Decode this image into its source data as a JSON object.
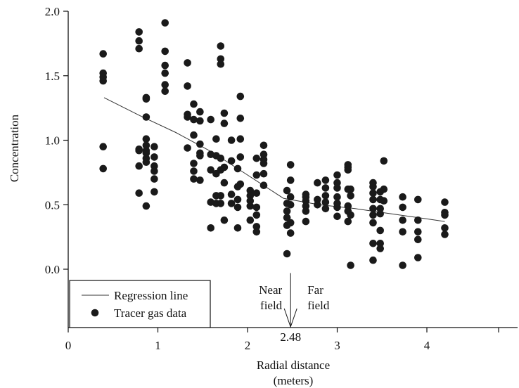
{
  "chart_data": {
    "type": "scatter",
    "xlabel": "Radial distance",
    "xlabel_unit": "(meters)",
    "ylabel": "Concentration",
    "xlim": [
      0,
      4.8
    ],
    "ylim": [
      -0.45,
      2.0
    ],
    "x_ticks": [
      0,
      1,
      2,
      3,
      4
    ],
    "x_tick_labels": [
      "0",
      "1",
      "2",
      "3",
      "4"
    ],
    "y_ticks": [
      0.0,
      0.5,
      1.0,
      1.5,
      2.0
    ],
    "y_tick_labels": [
      "0.0",
      "0.5",
      "1.0",
      "1.5",
      "2.0"
    ],
    "grid": false,
    "legend_position": "bottom-left",
    "series": [
      {
        "name": "Tracer gas data",
        "kind": "points",
        "color": "#1a1a1a",
        "points": [
          [
            0.39,
            1.67
          ],
          [
            0.39,
            1.52
          ],
          [
            0.39,
            1.49
          ],
          [
            0.39,
            1.46
          ],
          [
            0.39,
            0.95
          ],
          [
            0.39,
            0.78
          ],
          [
            0.79,
            1.84
          ],
          [
            0.79,
            1.77
          ],
          [
            0.79,
            1.71
          ],
          [
            0.79,
            0.93
          ],
          [
            0.79,
            0.92
          ],
          [
            0.79,
            0.8
          ],
          [
            0.79,
            0.59
          ],
          [
            0.87,
            1.33
          ],
          [
            0.87,
            1.32
          ],
          [
            0.87,
            1.18
          ],
          [
            0.87,
            1.01
          ],
          [
            0.87,
            0.96
          ],
          [
            0.87,
            0.92
          ],
          [
            0.87,
            0.9
          ],
          [
            0.87,
            0.86
          ],
          [
            0.87,
            0.83
          ],
          [
            0.87,
            0.49
          ],
          [
            0.96,
            0.95
          ],
          [
            0.96,
            0.87
          ],
          [
            0.96,
            0.8
          ],
          [
            0.96,
            0.76
          ],
          [
            0.96,
            0.7
          ],
          [
            0.96,
            0.6
          ],
          [
            1.08,
            1.91
          ],
          [
            1.08,
            1.69
          ],
          [
            1.08,
            1.58
          ],
          [
            1.08,
            1.52
          ],
          [
            1.08,
            1.43
          ],
          [
            1.08,
            1.38
          ],
          [
            1.33,
            1.6
          ],
          [
            1.33,
            1.42
          ],
          [
            1.33,
            1.2
          ],
          [
            1.33,
            1.18
          ],
          [
            1.33,
            0.94
          ],
          [
            1.4,
            1.28
          ],
          [
            1.4,
            1.16
          ],
          [
            1.4,
            1.04
          ],
          [
            1.4,
            0.82
          ],
          [
            1.4,
            0.76
          ],
          [
            1.4,
            0.7
          ],
          [
            1.47,
            1.22
          ],
          [
            1.47,
            1.15
          ],
          [
            1.47,
            0.97
          ],
          [
            1.47,
            0.9
          ],
          [
            1.47,
            0.88
          ],
          [
            1.47,
            0.69
          ],
          [
            1.59,
            1.16
          ],
          [
            1.59,
            0.89
          ],
          [
            1.59,
            0.77
          ],
          [
            1.59,
            0.52
          ],
          [
            1.59,
            0.32
          ],
          [
            1.65,
            1.01
          ],
          [
            1.65,
            0.88
          ],
          [
            1.65,
            0.74
          ],
          [
            1.65,
            0.57
          ],
          [
            1.65,
            0.51
          ],
          [
            1.7,
            1.73
          ],
          [
            1.7,
            1.63
          ],
          [
            1.7,
            1.59
          ],
          [
            1.7,
            0.86
          ],
          [
            1.7,
            0.77
          ],
          [
            1.7,
            0.57
          ],
          [
            1.7,
            0.51
          ],
          [
            1.74,
            1.21
          ],
          [
            1.74,
            1.13
          ],
          [
            1.74,
            0.79
          ],
          [
            1.74,
            0.67
          ],
          [
            1.74,
            0.38
          ],
          [
            1.82,
            1.0
          ],
          [
            1.82,
            0.84
          ],
          [
            1.82,
            0.58
          ],
          [
            1.82,
            0.51
          ],
          [
            1.89,
            0.78
          ],
          [
            1.89,
            0.64
          ],
          [
            1.89,
            0.54
          ],
          [
            1.89,
            0.48
          ],
          [
            1.89,
            0.32
          ],
          [
            1.92,
            1.34
          ],
          [
            1.92,
            1.17
          ],
          [
            1.92,
            1.01
          ],
          [
            1.92,
            0.87
          ],
          [
            1.92,
            0.66
          ],
          [
            2.03,
            0.61
          ],
          [
            2.03,
            0.57
          ],
          [
            2.03,
            0.53
          ],
          [
            2.03,
            0.49
          ],
          [
            2.03,
            0.38
          ],
          [
            2.1,
            0.86
          ],
          [
            2.1,
            0.73
          ],
          [
            2.1,
            0.59
          ],
          [
            2.1,
            0.48
          ],
          [
            2.1,
            0.42
          ],
          [
            2.1,
            0.33
          ],
          [
            2.1,
            0.29
          ],
          [
            2.18,
            0.96
          ],
          [
            2.18,
            0.89
          ],
          [
            2.18,
            0.85
          ],
          [
            2.18,
            0.82
          ],
          [
            2.18,
            0.74
          ],
          [
            2.18,
            0.65
          ],
          [
            2.44,
            0.61
          ],
          [
            2.44,
            0.51
          ],
          [
            2.44,
            0.45
          ],
          [
            2.44,
            0.4
          ],
          [
            2.44,
            0.34
          ],
          [
            2.44,
            0.12
          ],
          [
            2.48,
            0.81
          ],
          [
            2.48,
            0.69
          ],
          [
            2.48,
            0.56
          ],
          [
            2.48,
            0.5
          ],
          [
            2.48,
            0.36
          ],
          [
            2.48,
            0.28
          ],
          [
            2.65,
            0.58
          ],
          [
            2.65,
            0.56
          ],
          [
            2.65,
            0.53
          ],
          [
            2.65,
            0.49
          ],
          [
            2.65,
            0.45
          ],
          [
            2.65,
            0.37
          ],
          [
            2.78,
            0.67
          ],
          [
            2.78,
            0.54
          ],
          [
            2.78,
            0.5
          ],
          [
            2.87,
            0.69
          ],
          [
            2.87,
            0.63
          ],
          [
            2.87,
            0.57
          ],
          [
            2.87,
            0.52
          ],
          [
            2.87,
            0.47
          ],
          [
            3.0,
            0.73
          ],
          [
            3.0,
            0.67
          ],
          [
            3.0,
            0.63
          ],
          [
            3.0,
            0.56
          ],
          [
            3.0,
            0.51
          ],
          [
            3.0,
            0.48
          ],
          [
            3.0,
            0.41
          ],
          [
            3.12,
            0.81
          ],
          [
            3.12,
            0.79
          ],
          [
            3.12,
            0.77
          ],
          [
            3.12,
            0.62
          ],
          [
            3.12,
            0.49
          ],
          [
            3.12,
            0.45
          ],
          [
            3.12,
            0.37
          ],
          [
            3.15,
            0.62
          ],
          [
            3.15,
            0.57
          ],
          [
            3.15,
            0.42
          ],
          [
            3.15,
            0.03
          ],
          [
            3.4,
            0.67
          ],
          [
            3.4,
            0.64
          ],
          [
            3.4,
            0.59
          ],
          [
            3.4,
            0.54
          ],
          [
            3.4,
            0.47
          ],
          [
            3.4,
            0.42
          ],
          [
            3.4,
            0.36
          ],
          [
            3.4,
            0.2
          ],
          [
            3.4,
            0.07
          ],
          [
            3.48,
            0.6
          ],
          [
            3.48,
            0.54
          ],
          [
            3.48,
            0.47
          ],
          [
            3.48,
            0.43
          ],
          [
            3.48,
            0.3
          ],
          [
            3.48,
            0.2
          ],
          [
            3.48,
            0.16
          ],
          [
            3.52,
            0.84
          ],
          [
            3.52,
            0.62
          ],
          [
            3.52,
            0.53
          ],
          [
            3.73,
            0.56
          ],
          [
            3.73,
            0.48
          ],
          [
            3.73,
            0.38
          ],
          [
            3.73,
            0.29
          ],
          [
            3.73,
            0.03
          ],
          [
            3.9,
            0.54
          ],
          [
            3.9,
            0.38
          ],
          [
            3.9,
            0.29
          ],
          [
            3.9,
            0.23
          ],
          [
            3.9,
            0.09
          ],
          [
            4.2,
            0.52
          ],
          [
            4.2,
            0.44
          ],
          [
            4.2,
            0.42
          ],
          [
            4.2,
            0.32
          ],
          [
            4.2,
            0.27
          ]
        ]
      },
      {
        "name": "Regression line",
        "kind": "line",
        "color": "#333333",
        "points": [
          [
            0.4,
            1.33
          ],
          [
            0.8,
            1.19
          ],
          [
            1.2,
            1.06
          ],
          [
            1.6,
            0.91
          ],
          [
            2.0,
            0.73
          ],
          [
            2.4,
            0.55
          ],
          [
            2.8,
            0.5
          ],
          [
            3.2,
            0.47
          ],
          [
            3.6,
            0.43
          ],
          [
            4.0,
            0.39
          ],
          [
            4.2,
            0.37
          ]
        ]
      }
    ],
    "annotations": {
      "breakpoint_x": 2.48,
      "breakpoint_label": "2.48",
      "near_label_1": "Near",
      "near_label_2": "field",
      "far_label_1": "Far",
      "far_label_2": "field"
    }
  }
}
